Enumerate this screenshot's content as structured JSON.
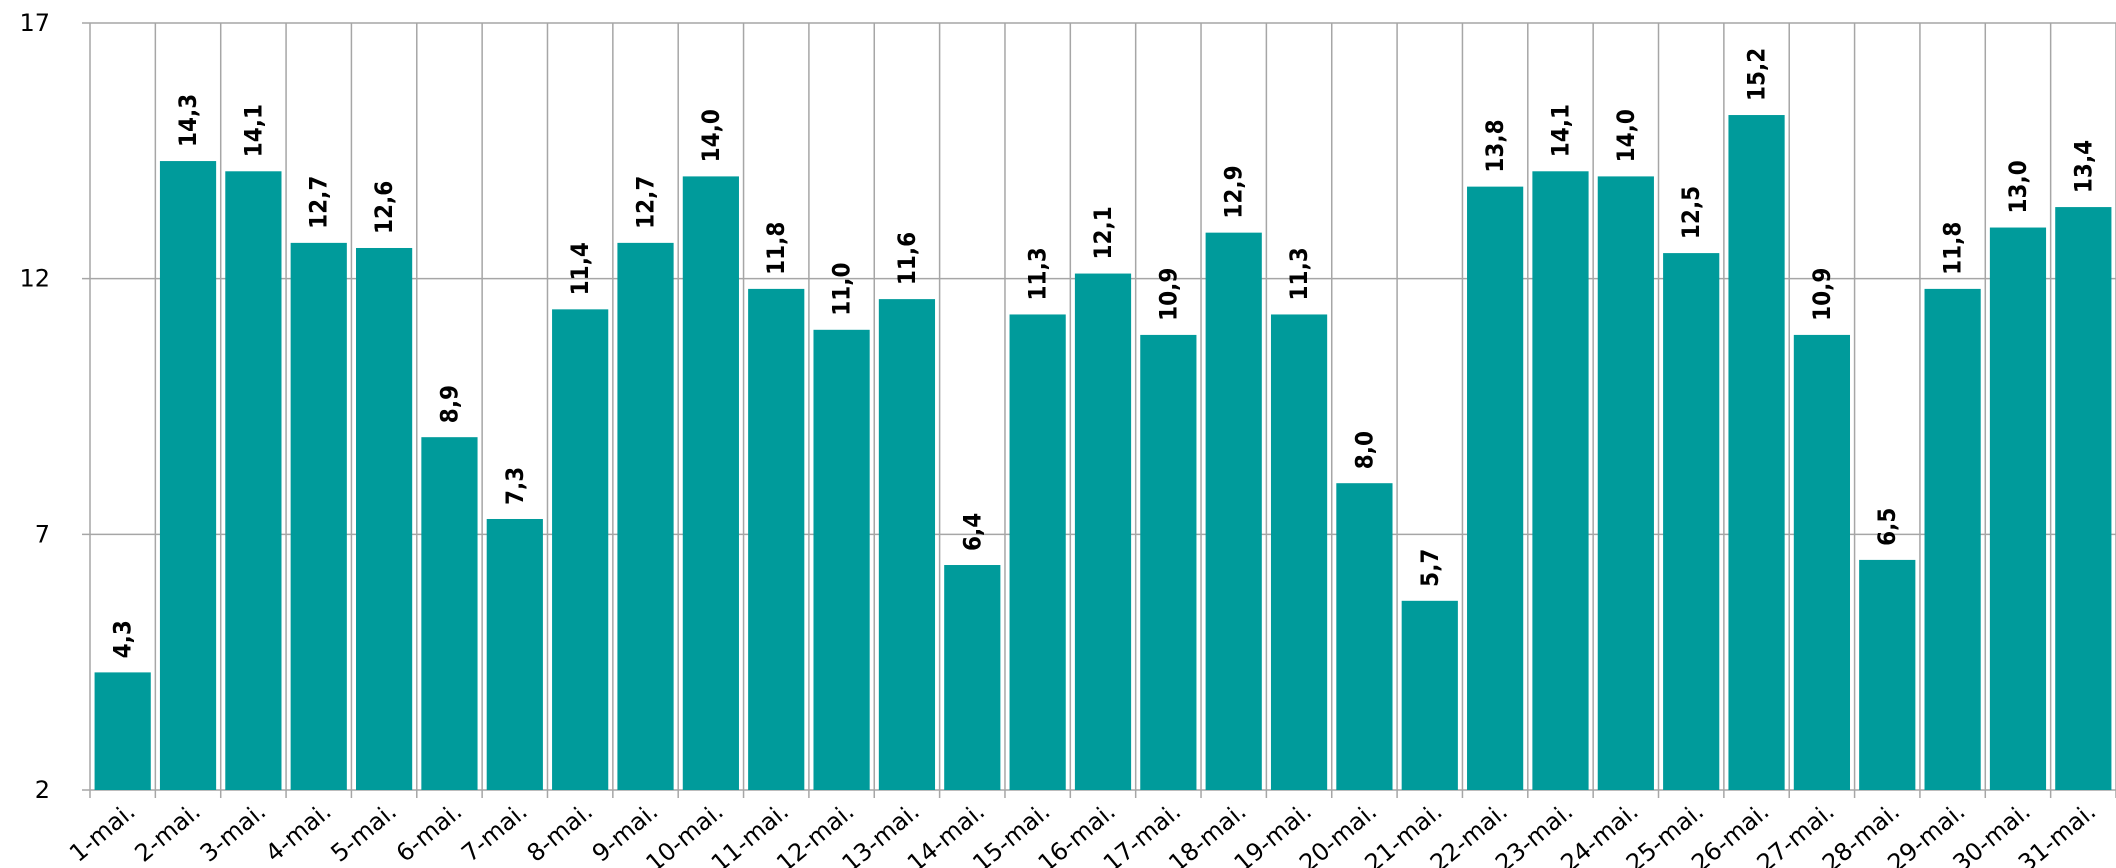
{
  "chart_data": {
    "type": "bar",
    "categories": [
      "1-mai.",
      "2-mai.",
      "3-mai.",
      "4-mai.",
      "5-mai.",
      "6-mai.",
      "7-mai.",
      "8-mai.",
      "9-mai.",
      "10-mai.",
      "11-mai.",
      "12-mai.",
      "13-mai.",
      "14-mai.",
      "15-mai.",
      "16-mai.",
      "17-mai.",
      "18-mai.",
      "19-mai.",
      "20-mai.",
      "21-mai.",
      "22-mai.",
      "23-mai.",
      "24-mai.",
      "25-mai.",
      "26-mai.",
      "27-mai.",
      "28-mai.",
      "29-mai.",
      "30-mai.",
      "31-mai."
    ],
    "values": [
      4.3,
      14.3,
      14.1,
      12.7,
      12.6,
      8.9,
      7.3,
      11.4,
      12.7,
      14.0,
      11.8,
      11.0,
      11.6,
      6.4,
      11.3,
      12.1,
      10.9,
      12.9,
      11.3,
      8.0,
      5.7,
      13.8,
      14.1,
      14.0,
      12.5,
      15.2,
      10.9,
      6.5,
      11.8,
      13.0,
      13.4
    ],
    "value_labels": [
      "4,3",
      "14,3",
      "14,1",
      "12,7",
      "12,6",
      "8,9",
      "7,3",
      "11,4",
      "12,7",
      "14,0",
      "11,8",
      "11,0",
      "11,6",
      "6,4",
      "11,3",
      "12,1",
      "10,9",
      "12,9",
      "11,3",
      "8,0",
      "5,7",
      "13,8",
      "14,1",
      "14,0",
      "12,5",
      "15,2",
      "10,9",
      "6,5",
      "11,8",
      "13,0",
      "13,4"
    ],
    "color": "#009b9b",
    "ylim": [
      2,
      17
    ],
    "yticks": [
      2,
      7,
      12,
      17
    ],
    "grid": true
  }
}
